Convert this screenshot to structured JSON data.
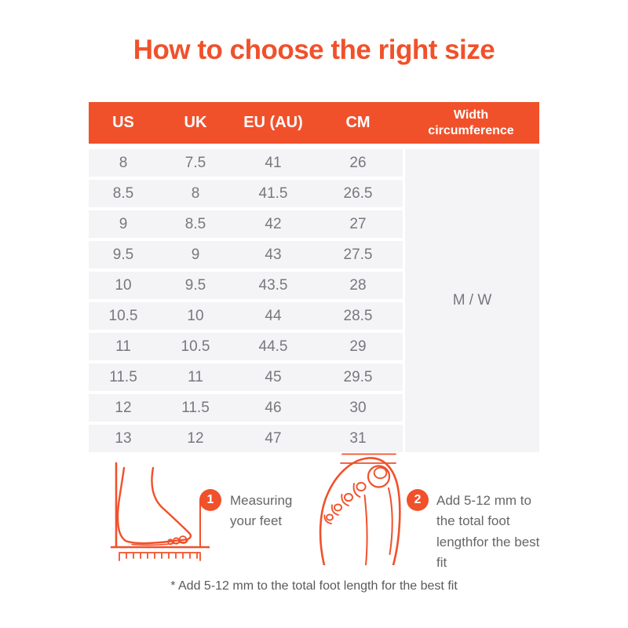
{
  "header": {
    "title": "How to choose the right size"
  },
  "chart_data": {
    "type": "table",
    "title": "How to choose the right size",
    "columns": [
      "US",
      "UK",
      "EU (AU)",
      "CM",
      "Width circumference"
    ],
    "rows": [
      [
        "8",
        "7.5",
        "41",
        "26"
      ],
      [
        "8.5",
        "8",
        "41.5",
        "26.5"
      ],
      [
        "9",
        "8.5",
        "42",
        "27"
      ],
      [
        "9.5",
        "9",
        "43",
        "27.5"
      ],
      [
        "10",
        "9.5",
        "43.5",
        "28"
      ],
      [
        "10.5",
        "10",
        "44",
        "28.5"
      ],
      [
        "11",
        "10.5",
        "44.5",
        "29"
      ],
      [
        "11.5",
        "11",
        "45",
        "29.5"
      ],
      [
        "12",
        "11.5",
        "46",
        "30"
      ],
      [
        "13",
        "12",
        "47",
        "31"
      ]
    ],
    "width_circumference_value": "M / W",
    "layout": {
      "header_bg": "alternating none, merged last column",
      "grid": "row bands"
    }
  },
  "footer": {
    "steps": [
      {
        "number": "1",
        "label": "Measuring your feet",
        "icon": "foot-side-measuring-icon"
      },
      {
        "number": "2",
        "label": "Add 5-12 mm to the total foot lengthfor the best fit",
        "icon": "foot-top-view-icon"
      }
    ],
    "note": "* Add 5-12 mm to the total foot length for the best fit"
  },
  "colors": {
    "accent": "#F0512B",
    "table_header_bg": "#F0512B",
    "table_header_text": "#FFFFFF",
    "row_bg": "#F4F4F6",
    "body_text": "#77787C",
    "label_text": "#666669",
    "note_text": "#59595C",
    "background": "#FFFFFF"
  }
}
